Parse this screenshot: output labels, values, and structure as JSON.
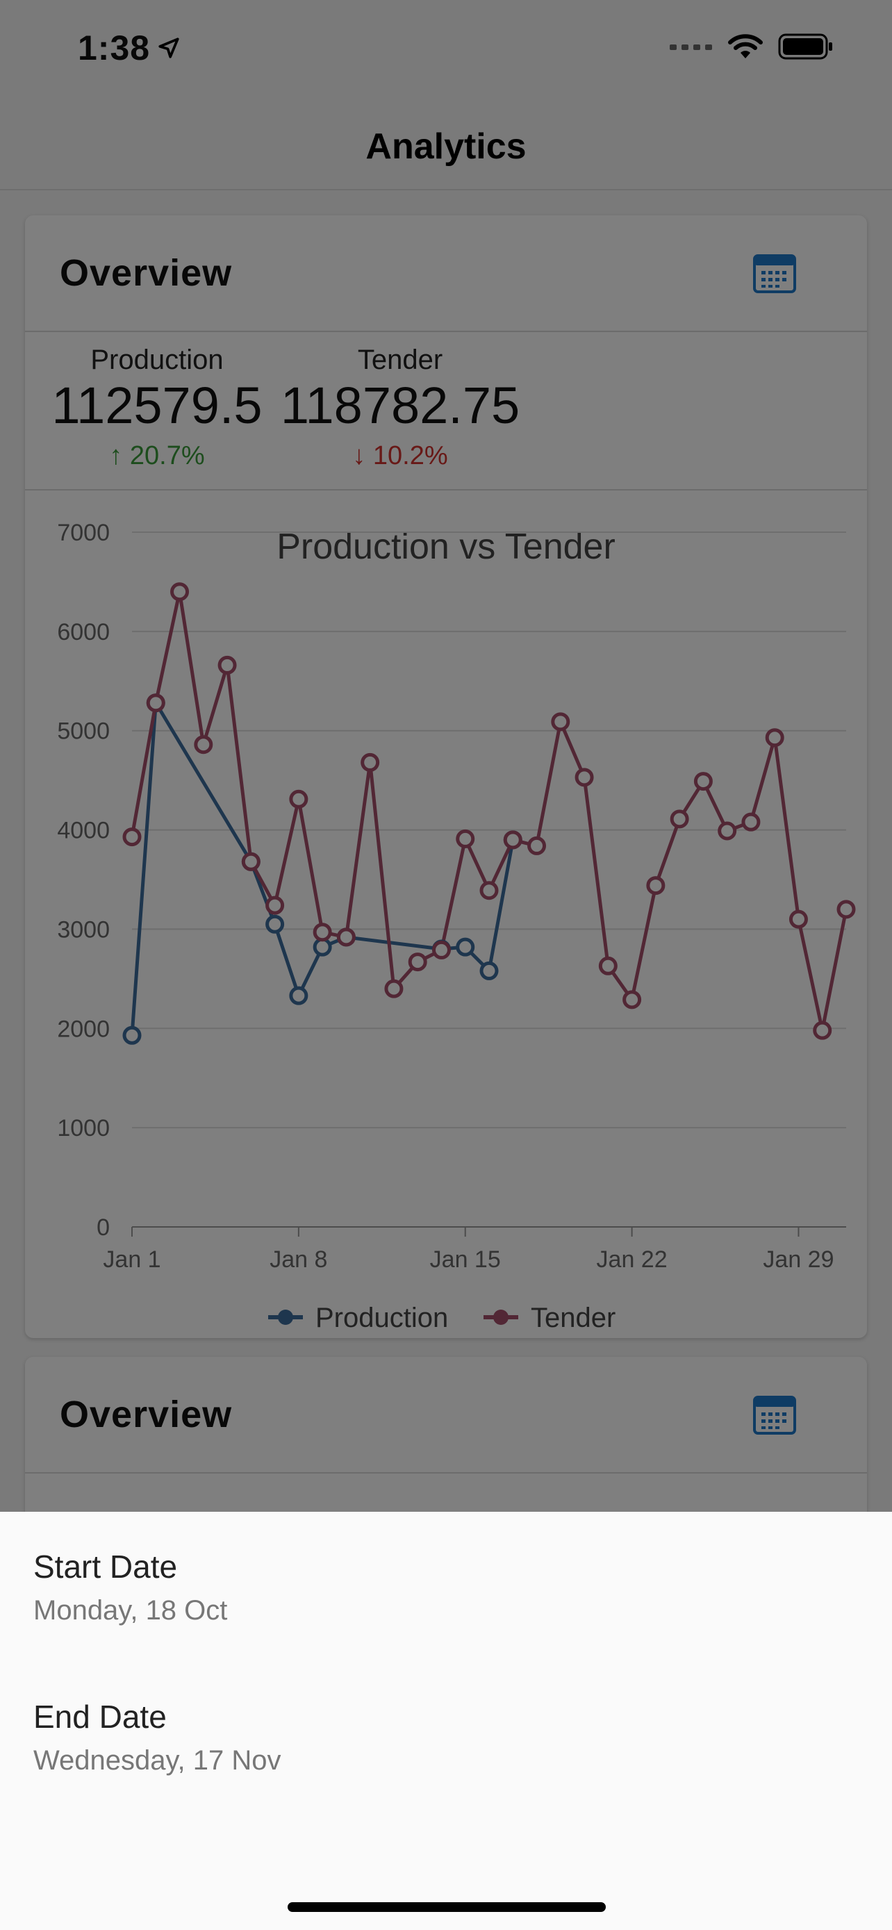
{
  "status_bar": {
    "time": "1:38",
    "icons": [
      "location-arrow-icon",
      "signal-icon",
      "wifi-icon",
      "battery-icon"
    ]
  },
  "nav": {
    "title": "Analytics"
  },
  "card1": {
    "title": "Overview",
    "calendar_icon": "calendar-icon",
    "stats": [
      {
        "label": "Production",
        "value": "112579.5",
        "change": "↑ 20.7%",
        "trend": "up"
      },
      {
        "label": "Tender",
        "value": "118782.75",
        "change": "↓ 10.2%",
        "trend": "down"
      }
    ]
  },
  "card2": {
    "title": "Overview",
    "calendar_icon": "calendar-icon"
  },
  "chart_data": {
    "type": "line",
    "title": "Production vs Tender",
    "x": [
      1,
      2,
      3,
      4,
      5,
      6,
      7,
      8,
      9,
      10,
      11,
      12,
      13,
      14,
      15,
      16,
      17,
      18,
      19,
      20,
      21,
      22,
      23,
      24,
      25,
      26,
      27,
      28,
      29,
      30,
      31
    ],
    "x_ticks": [
      {
        "value": 1,
        "label": "Jan 1"
      },
      {
        "value": 8,
        "label": "Jan 8"
      },
      {
        "value": 15,
        "label": "Jan 15"
      },
      {
        "value": 22,
        "label": "Jan 22"
      },
      {
        "value": 29,
        "label": "Jan 29"
      }
    ],
    "y_ticks": [
      0,
      1000,
      2000,
      3000,
      4000,
      5000,
      6000,
      7000
    ],
    "ylim": [
      0,
      7000
    ],
    "xlim": [
      1,
      31
    ],
    "grid": true,
    "legend_position": "bottom",
    "series": [
      {
        "name": "Production",
        "color": "#3c6c9c",
        "points": [
          [
            1,
            1930
          ],
          [
            2,
            5280
          ],
          [
            6,
            3680
          ],
          [
            7,
            3050
          ],
          [
            8,
            2330
          ],
          [
            9,
            2820
          ],
          [
            10,
            2920
          ],
          [
            14,
            2800
          ],
          [
            15,
            2820
          ],
          [
            16,
            2580
          ],
          [
            17,
            3900
          ]
        ]
      },
      {
        "name": "Tender",
        "color": "#a44e6a",
        "points": [
          [
            1,
            3930
          ],
          [
            2,
            5280
          ],
          [
            3,
            6400
          ],
          [
            4,
            4860
          ],
          [
            5,
            5660
          ],
          [
            6,
            3680
          ],
          [
            7,
            3240
          ],
          [
            8,
            4310
          ],
          [
            9,
            2970
          ],
          [
            10,
            2920
          ],
          [
            11,
            4680
          ],
          [
            12,
            2400
          ],
          [
            13,
            2670
          ],
          [
            14,
            2790
          ],
          [
            15,
            3910
          ],
          [
            16,
            3390
          ],
          [
            17,
            3900
          ],
          [
            18,
            3840
          ],
          [
            19,
            5090
          ],
          [
            20,
            4530
          ],
          [
            21,
            2630
          ],
          [
            22,
            2290
          ],
          [
            23,
            3440
          ],
          [
            24,
            4110
          ],
          [
            25,
            4490
          ],
          [
            26,
            3990
          ],
          [
            27,
            4080
          ],
          [
            28,
            4930
          ],
          [
            29,
            3100
          ],
          [
            30,
            1980
          ],
          [
            31,
            3200
          ]
        ]
      }
    ]
  },
  "sheet": {
    "start_label": "Start Date",
    "start_value": "Monday, 18 Oct",
    "end_label": "End Date",
    "end_value": "Wednesday, 17 Nov"
  }
}
